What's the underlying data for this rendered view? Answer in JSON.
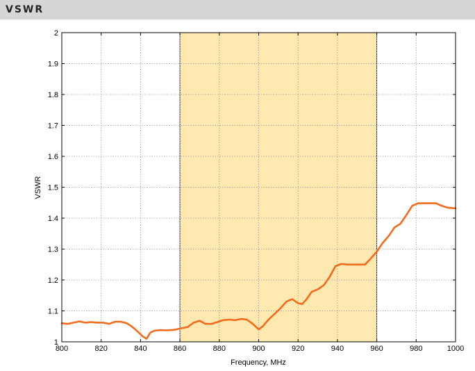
{
  "header": {
    "title": "VSWR"
  },
  "chart_data": {
    "type": "line",
    "title": "",
    "xlabel": "Frequency, MHz",
    "ylabel": "VSWR",
    "xlim": [
      800,
      1000
    ],
    "ylim": [
      1,
      2
    ],
    "xticks": [
      "800",
      "820",
      "840",
      "860",
      "880",
      "900",
      "920",
      "940",
      "960",
      "980",
      "1000"
    ],
    "yticks": [
      "1",
      "1.1",
      "1.2",
      "1.3",
      "1.4",
      "1.5",
      "1.6",
      "1.7",
      "1.8",
      "1.9",
      "2"
    ],
    "grid": true,
    "highlight_band": {
      "x_start": 860,
      "x_end": 960,
      "color": "#fde8b0"
    },
    "line_color": "#f26b1d",
    "series": [
      {
        "x": [
          800,
          803,
          806,
          809,
          812,
          815,
          818,
          821,
          824,
          827,
          830,
          833,
          835,
          837,
          839,
          841,
          843,
          845,
          847,
          850,
          853,
          856,
          858,
          861,
          864,
          867,
          870,
          873,
          876,
          879,
          882,
          885,
          888,
          891,
          894,
          897,
          900,
          902,
          905,
          908,
          911,
          914,
          917,
          920,
          922,
          924,
          927,
          930,
          933,
          936,
          939,
          942,
          945,
          948,
          951,
          954,
          957,
          960,
          963,
          966,
          969,
          972,
          975,
          978,
          981,
          984,
          987,
          990,
          993,
          996,
          1000
        ],
        "y": [
          1.06,
          1.058,
          1.062,
          1.066,
          1.062,
          1.064,
          1.062,
          1.062,
          1.058,
          1.065,
          1.065,
          1.06,
          1.052,
          1.042,
          1.03,
          1.018,
          1.01,
          1.03,
          1.036,
          1.038,
          1.037,
          1.038,
          1.04,
          1.044,
          1.048,
          1.062,
          1.068,
          1.058,
          1.058,
          1.064,
          1.07,
          1.072,
          1.07,
          1.074,
          1.072,
          1.058,
          1.04,
          1.05,
          1.072,
          1.09,
          1.108,
          1.13,
          1.138,
          1.125,
          1.122,
          1.135,
          1.162,
          1.17,
          1.183,
          1.21,
          1.245,
          1.252,
          1.25,
          1.25,
          1.25,
          1.25,
          1.27,
          1.292,
          1.32,
          1.342,
          1.37,
          1.382,
          1.41,
          1.44,
          1.448,
          1.448,
          1.448,
          1.448,
          1.44,
          1.434,
          1.432
        ]
      }
    ]
  }
}
